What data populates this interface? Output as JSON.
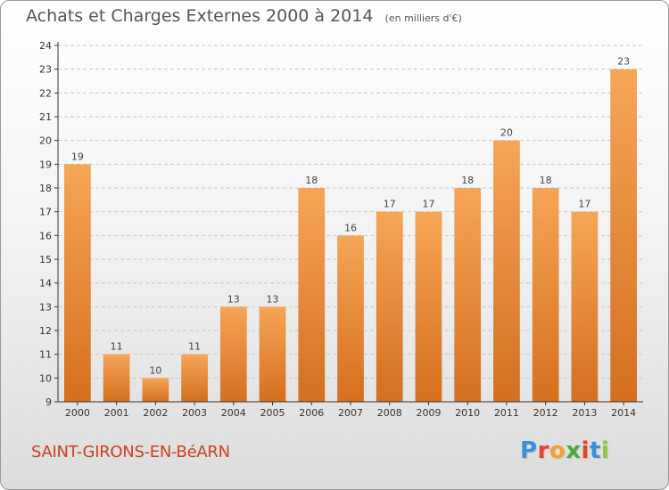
{
  "header": {
    "title": "Achats et Charges Externes 2000 à 2014",
    "unit": "(en milliers d'€)"
  },
  "footer": {
    "commune": "SAINT-GIRONS-EN-BéARN",
    "logo_letters": [
      "P",
      "r",
      "o",
      "x",
      "i",
      "t",
      "i"
    ],
    "logo_colors": [
      "#3a8fd6",
      "#e8402a",
      "#f3a12b",
      "#4aa845",
      "#e8402a",
      "#3a8fd6",
      "#8ec63f"
    ]
  },
  "colors": {
    "bar": "#f0903a",
    "bar_light": "#f6a557",
    "bar_dark": "#d46f1f",
    "axis": "#333333",
    "grid": "#c8c8c8"
  },
  "chart_data": {
    "type": "bar",
    "title": "Achats et Charges Externes 2000 à 2014",
    "subtitle": "(en milliers d'€)",
    "xlabel": "",
    "ylabel": "",
    "categories": [
      "2000",
      "2001",
      "2002",
      "2003",
      "2004",
      "2005",
      "2006",
      "2007",
      "2008",
      "2009",
      "2010",
      "2011",
      "2012",
      "2013",
      "2014"
    ],
    "values": [
      19,
      11,
      10,
      11,
      13,
      13,
      18,
      16,
      17,
      17,
      18,
      20,
      18,
      17,
      23
    ],
    "ylim": [
      9,
      24
    ],
    "yticks": [
      9,
      10,
      11,
      12,
      13,
      14,
      15,
      16,
      17,
      18,
      19,
      20,
      21,
      22,
      23,
      24
    ],
    "grid": true,
    "grid_axis": "y",
    "legend": "none",
    "data_labels": true
  }
}
